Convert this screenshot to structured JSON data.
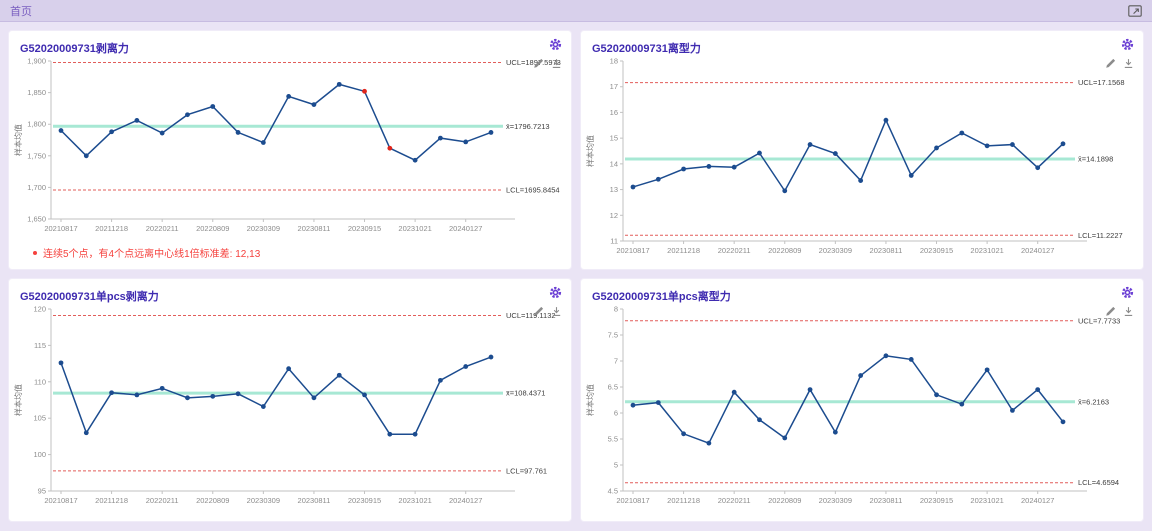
{
  "tab_bar": {
    "home_label": "首页"
  },
  "colors": {
    "line": "#1c4c8f",
    "center_line": "#a7e8d4",
    "limit_line": "#e25d5a",
    "flagged_point": "#e0261c",
    "axis": "#c2c2c2",
    "title": "#3f2bb0",
    "gear": "#6b3fd4",
    "warning": "#f5413d"
  },
  "panels": [
    {
      "title": "G52020009731剥离力",
      "warning": "连续5个点，有4个点远离中心线1倍标准差: 12,13"
    },
    {
      "title": "G52020009731离型力"
    },
    {
      "title": "G52020009731单pcs剥离力"
    },
    {
      "title": "G52020009731单pcs离型力"
    }
  ],
  "chart_data": [
    {
      "type": "line",
      "title": "G52020009731剥离力",
      "ylabel": "样本均值",
      "ylim": [
        1650,
        1900
      ],
      "ytick_values": [
        1650,
        1700,
        1750,
        1800,
        1850,
        1900
      ],
      "ytick_labels": [
        "1,650",
        "1,700",
        "1,750",
        "1,800",
        "1,850",
        "1,900"
      ],
      "x": [
        "20210817",
        "20211218",
        "20220211",
        "20220809",
        "20230309",
        "20230811",
        "20230915",
        "20231021",
        "20240127"
      ],
      "x_label_indices": [
        0,
        2,
        4,
        6,
        8,
        10,
        12,
        14,
        16
      ],
      "values": [
        1790,
        1750,
        1788,
        1806,
        1786,
        1815,
        1828,
        1787,
        1771,
        1844,
        1831,
        1863,
        1852,
        1762,
        1743,
        1778,
        1772,
        1787
      ],
      "ucl": 1897.5973,
      "mean": 1796.7213,
      "lcl": 1695.8454,
      "ucl_label": "UCL=1897.5973",
      "mean_label": "x̄=1796.7213",
      "lcl_label": "LCL=1695.8454",
      "flagged_indices": [
        12,
        13
      ],
      "legend": "none",
      "grid": "off"
    },
    {
      "type": "line",
      "title": "G52020009731离型力",
      "ylabel": "样本均值",
      "ylim": [
        11,
        18
      ],
      "ytick_values": [
        11,
        12,
        13,
        14,
        15,
        16,
        17,
        18
      ],
      "ytick_labels": [
        "11",
        "12",
        "13",
        "14",
        "15",
        "16",
        "17",
        "18"
      ],
      "x": [
        "20210817",
        "20211218",
        "20220211",
        "20220809",
        "20230309",
        "20230811",
        "20230915",
        "20231021",
        "20240127"
      ],
      "x_label_indices": [
        0,
        2,
        4,
        6,
        8,
        10,
        12,
        14,
        16
      ],
      "values": [
        13.1,
        13.4,
        13.8,
        13.9,
        13.87,
        14.42,
        12.95,
        14.75,
        14.4,
        13.35,
        15.7,
        13.55,
        14.62,
        15.2,
        14.7,
        14.75,
        13.85,
        14.78
      ],
      "ucl": 17.1568,
      "mean": 14.1898,
      "lcl": 11.2227,
      "ucl_label": "UCL=17.1568",
      "mean_label": "x̄=14.1898",
      "lcl_label": "LCL=11.2227",
      "flagged_indices": [],
      "legend": "none",
      "grid": "off"
    },
    {
      "type": "line",
      "title": "G52020009731单pcs剥离力",
      "ylabel": "样本均值",
      "ylim": [
        95,
        120
      ],
      "ytick_values": [
        95,
        100,
        105,
        110,
        115,
        120
      ],
      "ytick_labels": [
        "95",
        "100",
        "105",
        "110",
        "115",
        "120"
      ],
      "x": [
        "20210817",
        "20211218",
        "20220211",
        "20220809",
        "20230309",
        "20230811",
        "20230915",
        "20231021",
        "20240127"
      ],
      "x_label_indices": [
        0,
        2,
        4,
        6,
        8,
        10,
        12,
        14,
        16
      ],
      "values": [
        112.6,
        103,
        108.5,
        108.2,
        109.1,
        107.8,
        108.0,
        108.35,
        106.6,
        111.8,
        107.8,
        110.9,
        108.2,
        102.8,
        102.8,
        110.2,
        112.1,
        113.4
      ],
      "ucl": 119.1132,
      "mean": 108.4371,
      "lcl": 97.761,
      "ucl_label": "UCL=119.1132",
      "mean_label": "x̄=108.4371",
      "lcl_label": "LCL=97.761",
      "flagged_indices": [],
      "legend": "none",
      "grid": "off"
    },
    {
      "type": "line",
      "title": "G52020009731单pcs离型力",
      "ylabel": "样本均值",
      "ylim": [
        4.5,
        8
      ],
      "ytick_values": [
        4.5,
        5,
        5.5,
        6,
        6.5,
        7,
        7.5,
        8
      ],
      "ytick_labels": [
        "4.5",
        "5",
        "5.5",
        "6",
        "6.5",
        "7",
        "7.5",
        "8"
      ],
      "x": [
        "20210817",
        "20211218",
        "20220211",
        "20220809",
        "20230309",
        "20230811",
        "20230915",
        "20231021",
        "20240127"
      ],
      "x_label_indices": [
        0,
        2,
        4,
        6,
        8,
        10,
        12,
        14,
        16
      ],
      "values": [
        6.15,
        6.2,
        5.6,
        5.42,
        6.4,
        5.87,
        5.52,
        6.45,
        5.63,
        6.72,
        7.1,
        7.03,
        6.35,
        6.17,
        6.83,
        6.05,
        6.45,
        5.83
      ],
      "ucl": 7.7733,
      "mean": 6.2163,
      "lcl": 4.6594,
      "ucl_label": "UCL=7.7733",
      "mean_label": "x̄=6.2163",
      "lcl_label": "LCL=4.6594",
      "flagged_indices": [],
      "legend": "none",
      "grid": "off"
    }
  ]
}
